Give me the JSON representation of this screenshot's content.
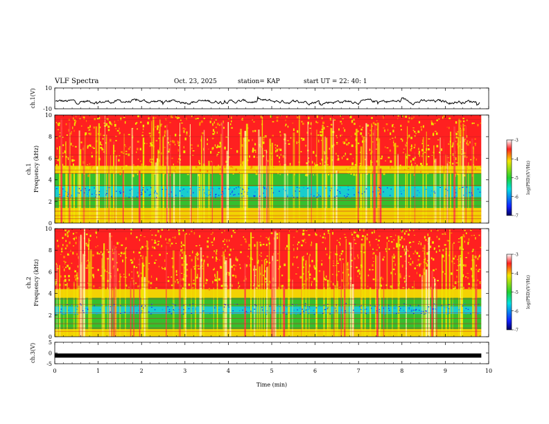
{
  "header": {
    "title": "VLF Spectra",
    "date": "Oct. 23, 2025",
    "station": "station= KAP",
    "start": "start UT =  22: 40: 1"
  },
  "colors": {
    "red": "#ff2020",
    "yellow": "#f2e600",
    "green": "#20d030",
    "cyan": "#00e0e0",
    "blue": "#1020ff",
    "navy": "#000060"
  },
  "chart_data": [
    {
      "type": "line",
      "name": "ch1-waveform",
      "ylabel": "ch.1(V)",
      "ylim": [
        -10,
        10
      ],
      "yticks": [
        "10",
        "-10"
      ],
      "xlim": [
        0,
        10
      ],
      "description_series": "noisy voltage around -3 V, range ~-6 to 1 V, t = 0 to 9.83 min"
    },
    {
      "type": "heatmap",
      "name": "ch1-spectrogram",
      "ylabel": "ch.1 Frequency (kHz)",
      "ylim": [
        0,
        10
      ],
      "yticks": [
        "0",
        "2",
        "4",
        "6",
        "8",
        "10"
      ],
      "xlim": [
        0,
        10
      ],
      "data_end_min": 9.83,
      "colorbar": {
        "label": "log(PSD)(V²/Hz)",
        "range": [
          -7,
          -3
        ],
        "ticks": [
          "-3",
          "-4",
          "-5",
          "-6",
          "-7"
        ]
      }
    },
    {
      "type": "heatmap",
      "name": "ch2-spectrogram",
      "ylabel": "ch.2 Frequency (kHz)",
      "ylim": [
        0,
        10
      ],
      "yticks": [
        "0",
        "2",
        "4",
        "6",
        "8",
        "10"
      ],
      "xlim": [
        0,
        10
      ],
      "data_end_min": 9.83,
      "colorbar": {
        "label": "log(PSD)(V²/Hz)",
        "range": [
          -7,
          -3
        ],
        "ticks": [
          "-3",
          "-4",
          "-5",
          "-6",
          "-7"
        ]
      }
    },
    {
      "type": "line",
      "name": "ch3-waveform",
      "ylabel": "ch.3(V)",
      "ylim": [
        -5,
        5
      ],
      "yticks": [
        "5",
        "0",
        "-5"
      ],
      "xlim": [
        0,
        10
      ],
      "level_v": -1.2
    }
  ],
  "xaxis": {
    "label": "Time (min)",
    "ticks": [
      "0",
      "1",
      "2",
      "3",
      "4",
      "5",
      "6",
      "7",
      "8",
      "9",
      "10"
    ]
  }
}
